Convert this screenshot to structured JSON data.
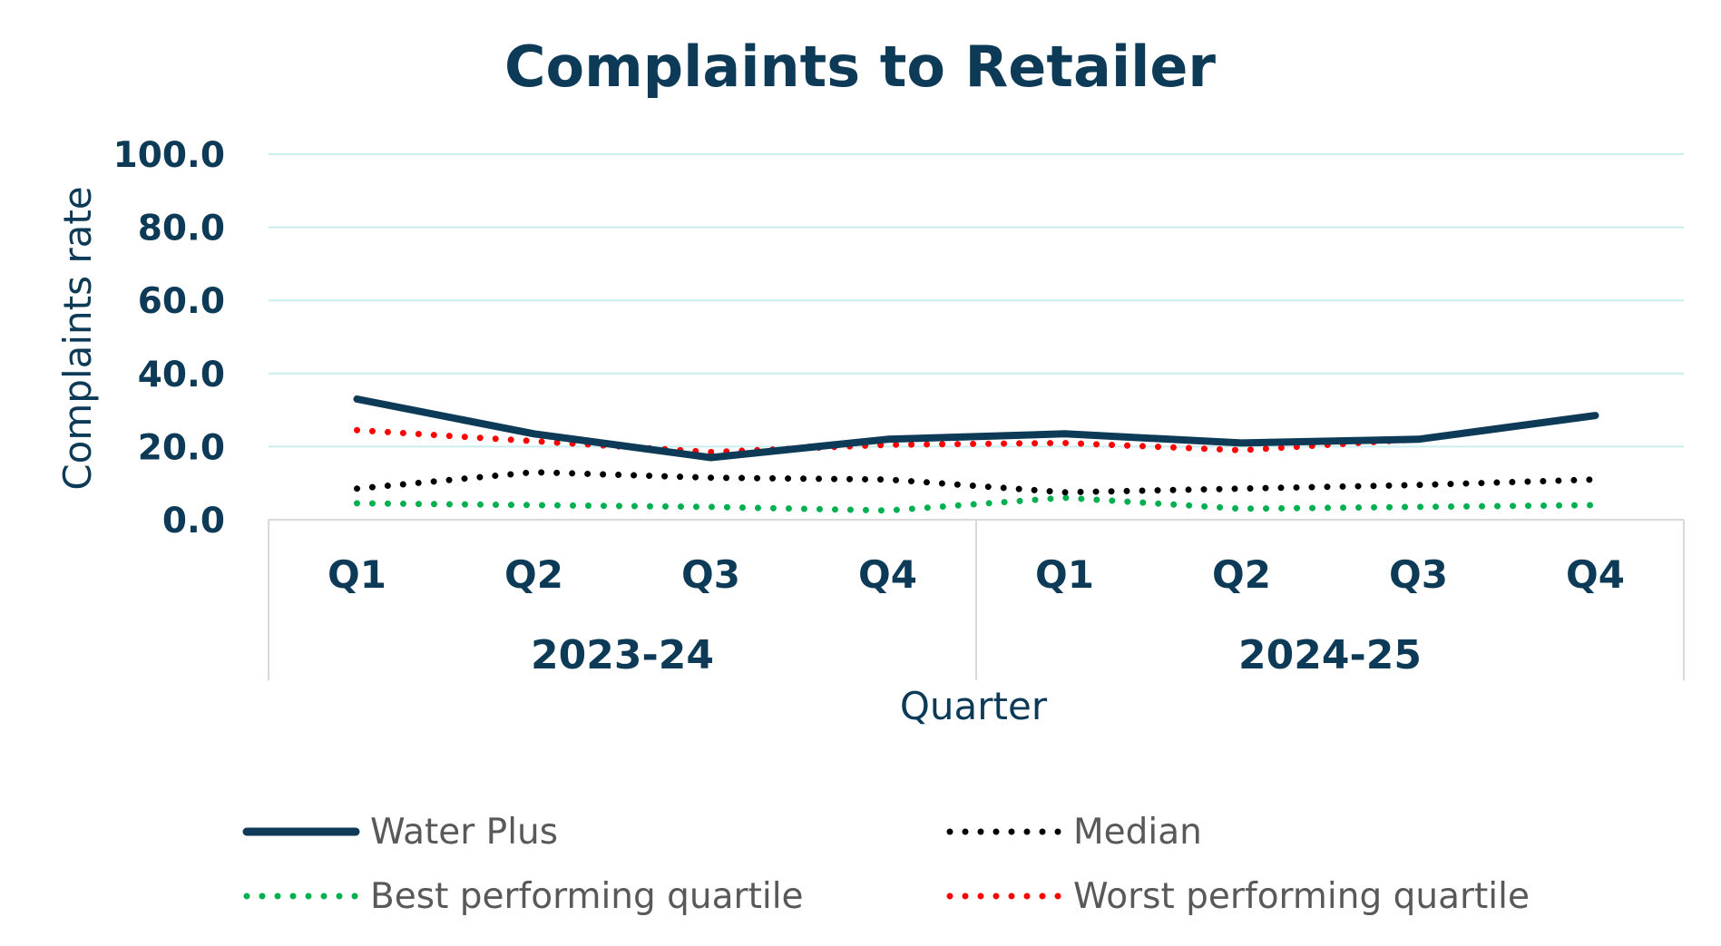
{
  "chart_data": {
    "type": "line",
    "title": "Complaints to Retailer",
    "xlabel": "Quarter",
    "ylabel": "Complaints rate",
    "ylim": [
      0,
      100
    ],
    "yticks": [
      "0.0",
      "20.0",
      "40.0",
      "60.0",
      "80.0",
      "100.0"
    ],
    "categories": [
      "Q1",
      "Q2",
      "Q3",
      "Q4",
      "Q1",
      "Q2",
      "Q3",
      "Q4"
    ],
    "groups": [
      {
        "label": "2023-24",
        "count": 4
      },
      {
        "label": "2024-25",
        "count": 4
      }
    ],
    "grid": true,
    "legend_position": "bottom",
    "series": [
      {
        "name": "Water Plus",
        "style": "solid",
        "color": "#0d3a56",
        "values": [
          33.0,
          23.5,
          17.0,
          22.0,
          23.5,
          21.0,
          22.0,
          28.5
        ]
      },
      {
        "name": "Median",
        "style": "dotted",
        "color": "#000000",
        "values": [
          8.5,
          13.0,
          11.5,
          11.0,
          7.5,
          8.5,
          9.5,
          11.0
        ]
      },
      {
        "name": "Best performing quartile",
        "style": "dotted",
        "color": "#00b050",
        "values": [
          4.5,
          4.0,
          3.5,
          2.5,
          6.0,
          3.0,
          3.5,
          4.0
        ]
      },
      {
        "name": "Worst performing quartile",
        "style": "dotted",
        "color": "#ff0000",
        "values": [
          24.5,
          21.5,
          18.5,
          20.5,
          21.0,
          19.0,
          22.0,
          28.5
        ]
      }
    ],
    "colors": {
      "text": "#0d3a56",
      "grid": "#c9eef0",
      "axis": "#d9d9d9",
      "legend_text": "#595959"
    }
  }
}
